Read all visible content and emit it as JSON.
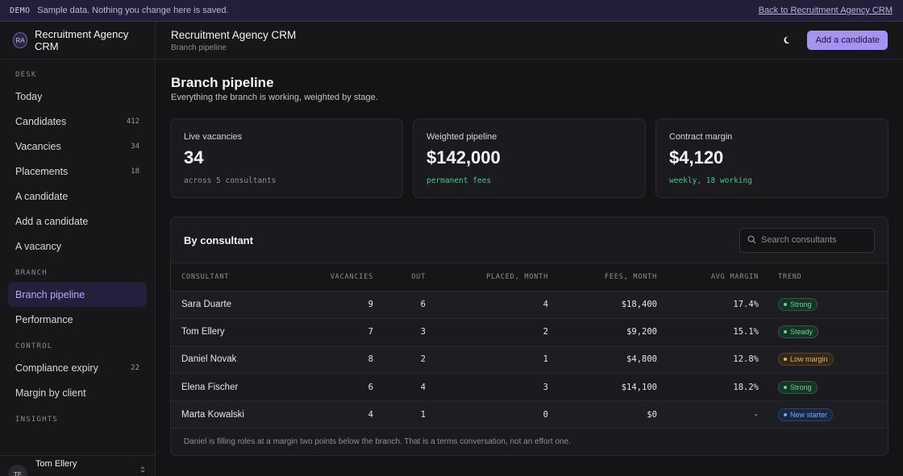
{
  "banner": {
    "tag": "DEMO",
    "message": "Sample data. Nothing you change here is saved.",
    "back_link": "Back to Recruitment Agency CRM"
  },
  "brand": {
    "initials": "RA",
    "name": "Recruitment Agency CRM"
  },
  "sidebar": {
    "sections": [
      {
        "label": "DESK",
        "items": [
          {
            "label": "Today",
            "count": ""
          },
          {
            "label": "Candidates",
            "count": "412"
          },
          {
            "label": "Vacancies",
            "count": "34"
          },
          {
            "label": "Placements",
            "count": "18"
          },
          {
            "label": "A candidate",
            "count": ""
          },
          {
            "label": "Add a candidate",
            "count": ""
          },
          {
            "label": "A vacancy",
            "count": ""
          }
        ]
      },
      {
        "label": "BRANCH",
        "items": [
          {
            "label": "Branch pipeline",
            "count": "",
            "active": true
          },
          {
            "label": "Performance",
            "count": ""
          }
        ]
      },
      {
        "label": "CONTROL",
        "items": [
          {
            "label": "Compliance expiry",
            "count": "22"
          },
          {
            "label": "Margin by client",
            "count": ""
          }
        ]
      },
      {
        "label": "INSIGHTS",
        "items": []
      }
    ],
    "user": {
      "initials": "TE",
      "name": "Tom Ellery"
    }
  },
  "header": {
    "title": "Recruitment Agency CRM",
    "subtitle": "Branch pipeline",
    "theme_icon": "moon-icon",
    "add_button": "Add a candidate"
  },
  "page": {
    "title": "Branch pipeline",
    "subtitle": "Everything the branch is working, weighted by stage."
  },
  "cards": [
    {
      "label": "Live vacancies",
      "value": "34",
      "note": "across 5 consultants",
      "tone": "muted"
    },
    {
      "label": "Weighted pipeline",
      "value": "$142,000",
      "note": "permanent fees",
      "tone": "green"
    },
    {
      "label": "Contract margin",
      "value": "$4,120",
      "note": "weekly, 18 working",
      "tone": "green"
    }
  ],
  "consultants": {
    "title": "By consultant",
    "search_placeholder": "Search consultants",
    "columns": [
      "CONSULTANT",
      "VACANCIES",
      "OUT",
      "PLACED, MONTH",
      "FEES, MONTH",
      "AVG MARGIN",
      "TREND"
    ],
    "rows": [
      {
        "name": "Sara Duarte",
        "vacancies": "9",
        "out": "6",
        "placed": "4",
        "fees": "$18,400",
        "margin": "17.4%",
        "trend": "Strong",
        "tone": "green"
      },
      {
        "name": "Tom Ellery",
        "vacancies": "7",
        "out": "3",
        "placed": "2",
        "fees": "$9,200",
        "margin": "15.1%",
        "trend": "Steady",
        "tone": "green"
      },
      {
        "name": "Daniel Novak",
        "vacancies": "8",
        "out": "2",
        "placed": "1",
        "fees": "$4,800",
        "margin": "12.8%",
        "trend": "Low margin",
        "tone": "amber"
      },
      {
        "name": "Elena Fischer",
        "vacancies": "6",
        "out": "4",
        "placed": "3",
        "fees": "$14,100",
        "margin": "18.2%",
        "trend": "Strong",
        "tone": "green"
      },
      {
        "name": "Marta Kowalski",
        "vacancies": "4",
        "out": "1",
        "placed": "0",
        "fees": "$0",
        "margin": "-",
        "trend": "New starter",
        "tone": "blue"
      }
    ],
    "footnote": "Daniel is filling roles at a margin two points below the branch. That is a terms conversation, not an effort one."
  }
}
